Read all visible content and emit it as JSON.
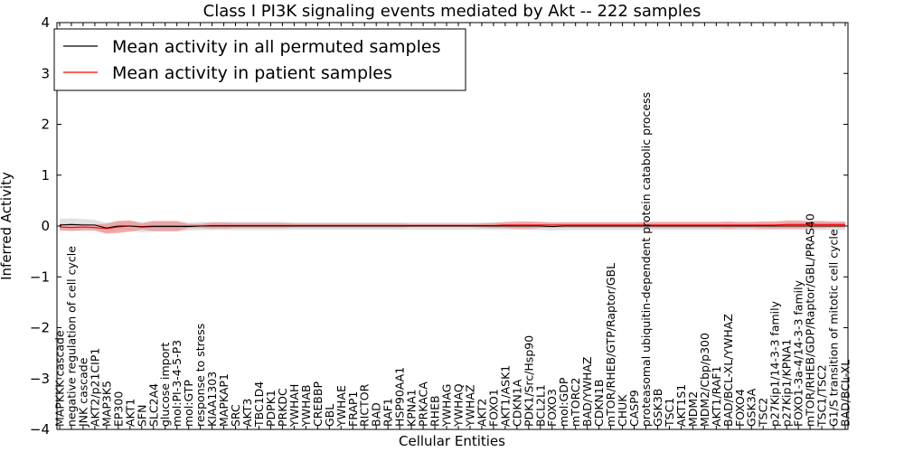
{
  "chart_data": {
    "type": "line",
    "title": "Class I PI3K signaling events mediated by Akt -- 222 samples",
    "xlabel": "Cellular Entities",
    "ylabel": "Inferred Activity",
    "ylim": [
      -4,
      4
    ],
    "yticks": [
      4,
      3,
      2,
      1,
      0,
      -1,
      -2,
      -3,
      -4
    ],
    "grid": false,
    "legend_position": "top-left",
    "categories": [
      "MAPKKK cascade",
      "negative regulation of cell cycle",
      "JNK cascade",
      "AKT2/p21CIP1",
      "MAP3K5",
      "EP300",
      "AKT1",
      "SFN",
      "SLC2A4",
      "glucose import",
      "mol:PI-3-4-5-P3",
      "mol:GTP",
      "response to stress",
      "KIAA1303",
      "MAPKAP1",
      "SRC",
      "AKT3",
      "TBC1D4",
      "PDPK1",
      "PRKDC",
      "YWHAH",
      "YWHAB",
      "CREBBP",
      "GBL",
      "YWHAE",
      "FRAP1",
      "RICTOR",
      "BAD",
      "RAF1",
      "HSP90AA1",
      "KPNA1",
      "PRKACA",
      "RHEB",
      "YWHAG",
      "YWHAQ",
      "YWHAZ",
      "AKT2",
      "FOXO1",
      "AKT1/ASK1",
      "CDKN1A",
      "PDK1/Src/Hsp90",
      "BCL2L1",
      "FOXO3",
      "mol:GDP",
      "mTORC2",
      "BAD/YWHAZ",
      "CDKN1B",
      "mTOR/RHEB/GTP/Raptor/GBL",
      "CHUK",
      "CASP9",
      "proteasomal ubiquitin-dependent protein catabolic process",
      "GSK3B",
      "TSC1",
      "AKT1S1",
      "MDM2",
      "MDM2/Cbp/p300",
      "AKT1/RAF1",
      "BAD/BCL-XL/YWHAZ",
      "FOXO4",
      "GSK3A",
      "TSC2",
      "p27Kip1/14-3-3 family",
      "p27Kip1/KPNA1",
      "FOXO1-3a-4/14-3-3 family",
      "mTOR/RHEB/GDP/Raptor/GBL/PRAS40",
      "TSC1/TSC2",
      "G1/S transition of mitotic cell cycle",
      "BAD/BCL-XL"
    ],
    "series": [
      {
        "name": "Mean activity in all permuted samples",
        "color": "#000000",
        "values": [
          0.02,
          0.03,
          0.02,
          0.02,
          -0.04,
          0.0,
          0.0,
          -0.02,
          -0.01,
          -0.01,
          -0.01,
          -0.01,
          0.0,
          0.0,
          0.0,
          0.0,
          0.0,
          0.0,
          0.0,
          0.0,
          0.0,
          0.0,
          0.0,
          0.0,
          0.0,
          0.0,
          0.0,
          0.0,
          0.0,
          0.0,
          0.0,
          0.0,
          0.0,
          0.0,
          0.0,
          0.0,
          0.0,
          0.0,
          0.0,
          0.0,
          0.0,
          0.0,
          -0.01,
          0.0,
          0.0,
          0.0,
          0.0,
          0.0,
          0.0,
          0.0,
          0.0,
          0.0,
          0.0,
          0.0,
          0.0,
          0.0,
          0.0,
          0.0,
          0.0,
          0.0,
          0.0,
          0.0,
          0.0,
          0.0,
          0.0,
          0.0,
          0.0,
          0.0
        ],
        "band": [
          0.12,
          0.12,
          0.12,
          0.1,
          0.1,
          0.1,
          0.1,
          0.1,
          0.1,
          0.1,
          0.1,
          0.08,
          0.08,
          0.08,
          0.08,
          0.08,
          0.08,
          0.08,
          0.08,
          0.08,
          0.07,
          0.07,
          0.07,
          0.07,
          0.07,
          0.07,
          0.07,
          0.07,
          0.07,
          0.07,
          0.07,
          0.07,
          0.07,
          0.07,
          0.07,
          0.07,
          0.07,
          0.07,
          0.07,
          0.07,
          0.08,
          0.08,
          0.08,
          0.08,
          0.08,
          0.08,
          0.08,
          0.08,
          0.08,
          0.08,
          0.08,
          0.08,
          0.08,
          0.08,
          0.08,
          0.08,
          0.08,
          0.08,
          0.08,
          0.08,
          0.08,
          0.08,
          0.08,
          0.08,
          0.08,
          0.08,
          0.08,
          0.08
        ]
      },
      {
        "name": "Mean activity in patient samples",
        "color": "#ff0000",
        "values": [
          -0.02,
          -0.03,
          -0.02,
          -0.03,
          -0.05,
          -0.02,
          0.0,
          -0.01,
          0.0,
          0.0,
          0.0,
          0.0,
          0.0,
          0.01,
          0.01,
          0.01,
          0.01,
          0.01,
          0.01,
          0.01,
          0.01,
          0.01,
          0.01,
          0.01,
          0.01,
          0.01,
          0.01,
          0.01,
          0.01,
          0.01,
          0.01,
          0.01,
          0.01,
          0.01,
          0.01,
          0.01,
          0.01,
          0.01,
          0.02,
          0.02,
          0.02,
          0.02,
          0.02,
          0.02,
          0.02,
          0.02,
          0.02,
          0.02,
          0.02,
          0.02,
          0.02,
          0.02,
          0.02,
          0.02,
          0.02,
          0.02,
          0.02,
          0.02,
          0.02,
          0.02,
          0.02,
          0.02,
          0.03,
          0.03,
          0.03,
          0.03,
          0.03,
          0.03
        ],
        "band": [
          0.06,
          0.07,
          0.06,
          0.06,
          0.1,
          0.12,
          0.11,
          0.06,
          0.1,
          0.1,
          0.1,
          0.04,
          0.04,
          0.06,
          0.06,
          0.05,
          0.05,
          0.05,
          0.05,
          0.05,
          0.04,
          0.04,
          0.04,
          0.04,
          0.04,
          0.04,
          0.04,
          0.04,
          0.04,
          0.04,
          0.03,
          0.03,
          0.03,
          0.03,
          0.03,
          0.03,
          0.04,
          0.05,
          0.06,
          0.07,
          0.07,
          0.06,
          0.05,
          0.05,
          0.05,
          0.05,
          0.05,
          0.05,
          0.05,
          0.05,
          0.06,
          0.06,
          0.06,
          0.06,
          0.06,
          0.06,
          0.06,
          0.07,
          0.06,
          0.06,
          0.07,
          0.07,
          0.08,
          0.08,
          0.07,
          0.07,
          0.06,
          0.06
        ]
      }
    ]
  }
}
